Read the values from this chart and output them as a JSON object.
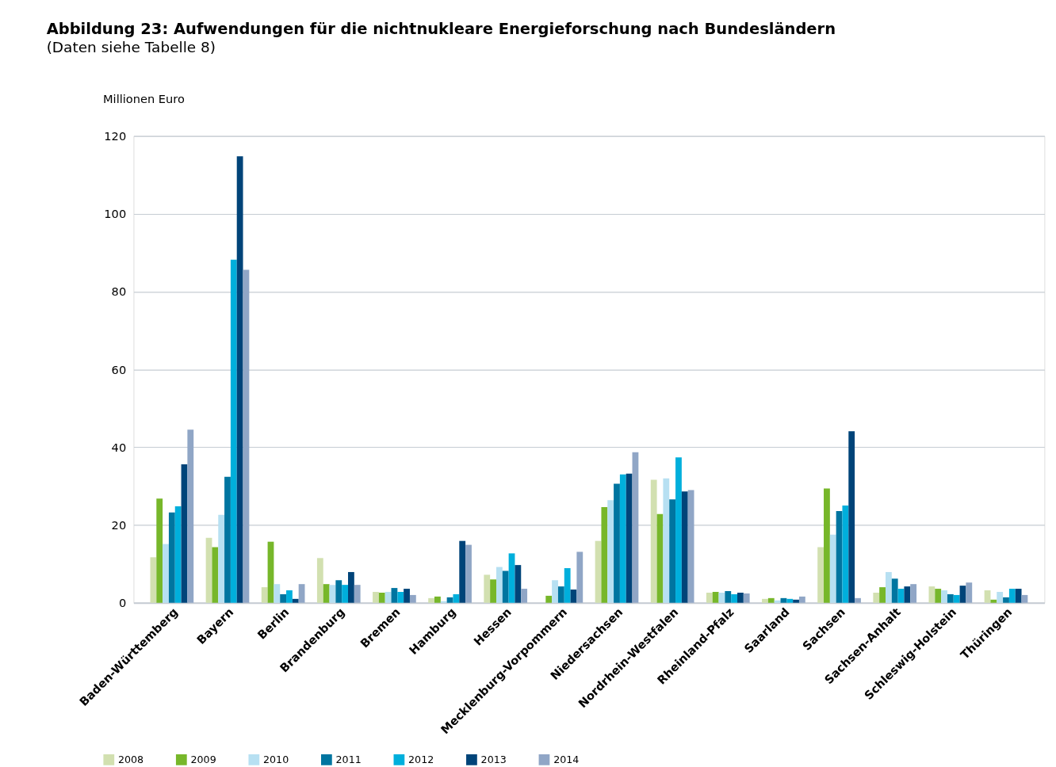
{
  "chart_data": {
    "type": "bar",
    "title": "Abbildung 23:  Aufwendungen für die nichtnukleare Energieforschung nach Bundesländern",
    "subtitle": "(Daten siehe Tabelle 8)",
    "ylabel": "Millionen Euro",
    "categories": [
      "Baden-Württemberg",
      "Bayern",
      "Berlin",
      "Brandenburg",
      "Bremen",
      "Hamburg",
      "Hessen",
      "Mecklenburg-Vorpommern",
      "Niedersachsen",
      "Nordrhein-Westfalen",
      "Rheinland-Pfalz",
      "Saarland",
      "Sachsen",
      "Sachsen-Anhalt",
      "Schleswig-Holstein",
      "Thüringen"
    ],
    "series": [
      {
        "name": "2008",
        "color": "#d2e0b0",
        "values": [
          11.7,
          16.7,
          4.0,
          11.5,
          2.8,
          1.2,
          7.2,
          null,
          15.9,
          31.6,
          2.6,
          1.0,
          14.3,
          2.6,
          4.2,
          3.2
        ]
      },
      {
        "name": "2009",
        "color": "#77b72a",
        "values": [
          26.8,
          14.3,
          15.7,
          4.8,
          2.6,
          1.6,
          6.0,
          1.8,
          24.6,
          22.8,
          2.8,
          1.2,
          29.4,
          4.0,
          3.6,
          0.8
        ]
      },
      {
        "name": "2010",
        "color": "#b7e0f2",
        "values": [
          15.1,
          22.6,
          4.8,
          4.6,
          2.8,
          0.4,
          9.2,
          5.8,
          26.4,
          32.0,
          2.6,
          0.6,
          17.5,
          7.9,
          3.2,
          2.8
        ]
      },
      {
        "name": "2011",
        "color": "#0075a0",
        "values": [
          23.2,
          32.4,
          2.2,
          5.8,
          3.8,
          1.4,
          8.2,
          4.2,
          30.6,
          26.6,
          3.0,
          1.2,
          23.6,
          6.2,
          2.2,
          1.4
        ]
      },
      {
        "name": "2012",
        "color": "#00afdc",
        "values": [
          24.8,
          88.2,
          3.2,
          4.6,
          2.8,
          2.2,
          12.7,
          8.9,
          33.0,
          37.4,
          2.2,
          1.0,
          25.0,
          3.6,
          2.0,
          3.6
        ]
      },
      {
        "name": "2013",
        "color": "#004479",
        "values": [
          35.6,
          114.8,
          1.0,
          7.9,
          3.6,
          15.9,
          9.7,
          3.4,
          33.2,
          28.6,
          2.6,
          0.8,
          44.1,
          4.2,
          4.4,
          3.6
        ]
      },
      {
        "name": "2014",
        "color": "#90a6c6",
        "values": [
          44.5,
          85.6,
          4.8,
          4.6,
          2.0,
          14.9,
          3.6,
          13.1,
          38.7,
          29.0,
          2.4,
          1.6,
          1.2,
          4.8,
          5.2,
          2.0
        ]
      }
    ],
    "ylim": [
      0,
      120
    ],
    "yticks": [
      0,
      20,
      40,
      60,
      80,
      100,
      120
    ],
    "grid": "y",
    "legend": "bottom left"
  }
}
